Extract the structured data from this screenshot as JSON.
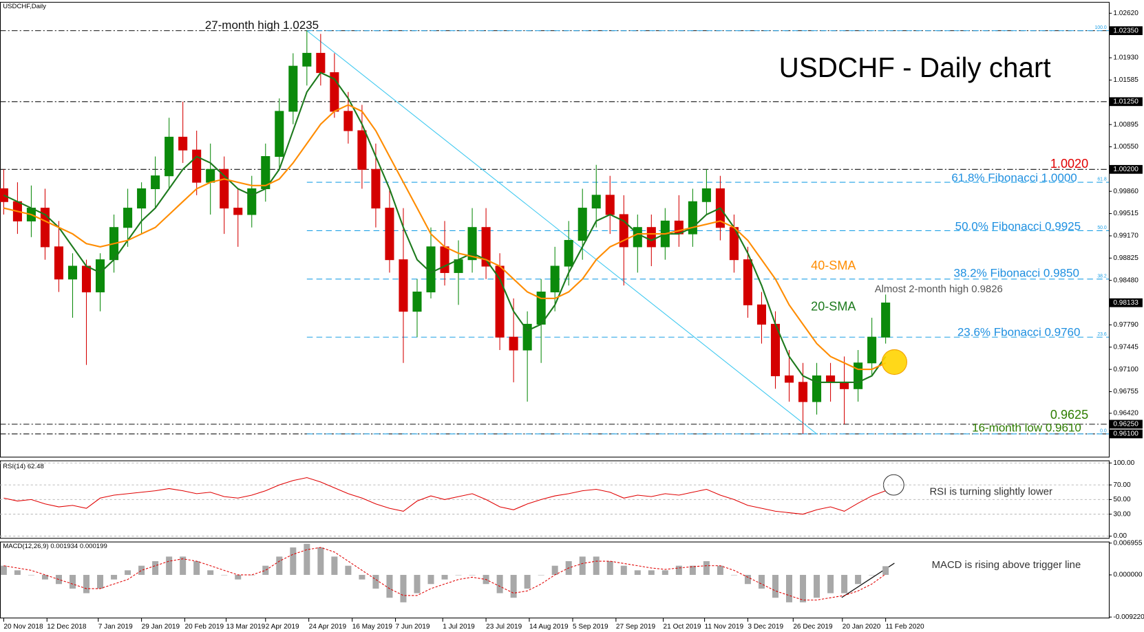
{
  "chart_data": [
    {
      "type": "candlestick",
      "header": "USDCHF,Daily",
      "title": "USDCHF - Daily chart",
      "x": [
        0,
        1,
        2,
        3,
        4,
        5,
        6,
        7,
        8,
        9,
        10,
        11,
        12,
        13,
        14,
        15,
        16,
        17,
        18,
        19,
        20,
        21,
        22,
        23,
        24,
        25,
        26,
        27,
        28,
        29,
        30,
        31,
        32,
        33,
        34,
        35,
        36,
        37,
        38,
        39,
        40,
        41,
        42,
        43,
        44,
        45,
        46,
        47,
        48,
        49,
        50,
        51,
        52,
        53,
        54,
        55,
        56,
        57,
        58,
        59,
        60,
        61,
        62,
        63,
        64
      ],
      "open": [
        0.999,
        0.997,
        0.994,
        0.996,
        0.99,
        0.985,
        0.987,
        0.983,
        0.988,
        0.993,
        0.996,
        0.999,
        1.001,
        1.007,
        1.005,
        1.0,
        1.002,
        0.996,
        0.995,
        0.999,
        1.004,
        1.011,
        1.018,
        1.02,
        1.017,
        1.011,
        1.008,
        1.002,
        0.996,
        0.988,
        0.98,
        0.983,
        0.99,
        0.986,
        0.988,
        0.993,
        0.987,
        0.976,
        0.974,
        0.978,
        0.983,
        0.987,
        0.991,
        0.996,
        0.998,
        0.995,
        0.99,
        0.993,
        0.99,
        0.994,
        0.992,
        0.997,
        0.999,
        0.993,
        0.988,
        0.981,
        0.978,
        0.97,
        0.969,
        0.966,
        0.97,
        0.969,
        0.968,
        0.972,
        0.976
      ],
      "high": [
        1.002,
        1.0,
        0.9995,
        0.999,
        0.994,
        0.989,
        0.988,
        0.989,
        0.995,
        0.999,
        1.0,
        1.004,
        1.01,
        1.0125,
        1.008,
        1.006,
        1.004,
        0.999,
        1.001,
        1.006,
        1.013,
        1.02,
        1.0235,
        1.023,
        1.02,
        1.014,
        1.012,
        1.006,
        0.999,
        0.996,
        0.985,
        0.993,
        0.994,
        0.991,
        0.996,
        0.996,
        0.989,
        0.982,
        0.98,
        0.985,
        0.99,
        0.994,
        0.999,
        1.0027,
        1.001,
        0.998,
        0.995,
        0.995,
        0.996,
        0.998,
        0.999,
        1.002,
        1.001,
        0.995,
        0.99,
        0.983,
        0.98,
        0.974,
        0.972,
        0.972,
        0.972,
        0.973,
        0.974,
        0.979,
        0.9826
      ],
      "low": [
        0.995,
        0.992,
        0.9915,
        0.988,
        0.983,
        0.979,
        0.9717,
        0.98,
        0.986,
        0.99,
        0.992,
        0.996,
        0.999,
        1.003,
        0.998,
        0.995,
        0.992,
        0.99,
        0.993,
        0.997,
        1.002,
        1.009,
        1.015,
        1.015,
        1.01,
        1.006,
        0.999,
        0.993,
        0.986,
        0.972,
        0.976,
        0.982,
        0.984,
        0.981,
        0.986,
        0.985,
        0.974,
        0.969,
        0.966,
        0.972,
        0.98,
        0.984,
        0.988,
        0.993,
        0.992,
        0.984,
        0.986,
        0.987,
        0.988,
        0.99,
        0.99,
        0.995,
        0.991,
        0.986,
        0.979,
        0.975,
        0.968,
        0.966,
        0.961,
        0.964,
        0.966,
        0.9625,
        0.966,
        0.97,
        0.975
      ],
      "close": [
        0.997,
        0.994,
        0.996,
        0.99,
        0.985,
        0.987,
        0.983,
        0.988,
        0.993,
        0.996,
        0.999,
        1.001,
        1.007,
        1.005,
        1.0,
        1.002,
        0.996,
        0.995,
        0.999,
        1.004,
        1.011,
        1.018,
        1.02,
        1.017,
        1.011,
        1.008,
        1.002,
        0.996,
        0.988,
        0.98,
        0.983,
        0.99,
        0.986,
        0.988,
        0.993,
        0.987,
        0.976,
        0.974,
        0.978,
        0.983,
        0.987,
        0.991,
        0.996,
        0.998,
        0.995,
        0.99,
        0.993,
        0.99,
        0.994,
        0.992,
        0.997,
        0.999,
        0.993,
        0.988,
        0.981,
        0.978,
        0.97,
        0.969,
        0.966,
        0.97,
        0.969,
        0.968,
        0.972,
        0.976,
        0.9813
      ],
      "up_color": "#0b8a0b",
      "down_color": "#d40000",
      "series": [
        {
          "name": "20-SMA",
          "color": "#1d7a1d",
          "values": [
            0.998,
            0.997,
            0.996,
            0.995,
            0.993,
            0.99,
            0.987,
            0.986,
            0.988,
            0.991,
            0.994,
            0.996,
            0.999,
            1.002,
            1.004,
            1.003,
            1.001,
            0.999,
            0.998,
            0.999,
            1.002,
            1.008,
            1.014,
            1.017,
            1.016,
            1.013,
            1.009,
            1.004,
            0.999,
            0.993,
            0.988,
            0.986,
            0.987,
            0.988,
            0.989,
            0.988,
            0.985,
            0.98,
            0.977,
            0.978,
            0.981,
            0.986,
            0.99,
            0.994,
            0.995,
            0.994,
            0.992,
            0.991,
            0.992,
            0.992,
            0.993,
            0.995,
            0.996,
            0.993,
            0.989,
            0.984,
            0.978,
            0.973,
            0.97,
            0.969,
            0.969,
            0.969,
            0.969,
            0.97,
            0.973
          ]
        },
        {
          "name": "40-SMA",
          "color": "#ff8c00",
          "values": [
            0.996,
            0.9955,
            0.995,
            0.994,
            0.993,
            0.992,
            0.9905,
            0.99,
            0.9905,
            0.991,
            0.992,
            0.993,
            0.995,
            0.997,
            0.999,
            1.0,
            1.0005,
            1.0,
            0.9995,
            0.9995,
            1.0005,
            1.003,
            1.006,
            1.009,
            1.011,
            1.012,
            1.011,
            1.008,
            1.004,
            1.0,
            0.996,
            0.992,
            0.99,
            0.989,
            0.9885,
            0.988,
            0.987,
            0.985,
            0.983,
            0.982,
            0.982,
            0.983,
            0.985,
            0.988,
            0.99,
            0.991,
            0.992,
            0.992,
            0.992,
            0.9925,
            0.993,
            0.9935,
            0.994,
            0.993,
            0.991,
            0.988,
            0.985,
            0.981,
            0.978,
            0.975,
            0.973,
            0.972,
            0.971,
            0.971,
            0.972
          ]
        }
      ],
      "xlim": [
        -0.27,
        80.2
      ],
      "ylim": [
        0.9574,
        1.0279
      ],
      "xticks": [
        {
          "value": 0,
          "label": "20 Nov 2018"
        },
        {
          "value": 3.14,
          "label": "12 Dec 2018"
        },
        {
          "value": 6.86,
          "label": "7 Jan 2019"
        },
        {
          "value": 10,
          "label": "29 Jan 2019"
        },
        {
          "value": 13.14,
          "label": "20 Feb 2019"
        },
        {
          "value": 16.14,
          "label": "13 Mar 2019"
        },
        {
          "value": 19,
          "label": "2 Apr 2019"
        },
        {
          "value": 22.14,
          "label": "24 Apr 2019"
        },
        {
          "value": 25.29,
          "label": "16 May 2019"
        },
        {
          "value": 28.43,
          "label": "7 Jun 2019"
        },
        {
          "value": 31.86,
          "label": "1 Jul 2019"
        },
        {
          "value": 35,
          "label": "23 Jul 2019"
        },
        {
          "value": 38.14,
          "label": "14 Aug 2019"
        },
        {
          "value": 41.29,
          "label": "5 Sep 2019"
        },
        {
          "value": 44.43,
          "label": "27 Sep 2019"
        },
        {
          "value": 47.86,
          "label": "21 Oct 2019"
        },
        {
          "value": 50.86,
          "label": "11 Nov 2019"
        },
        {
          "value": 54,
          "label": "3 Dec 2019"
        },
        {
          "value": 57.29,
          "label": "26 Dec 2019"
        },
        {
          "value": 60.86,
          "label": "20 Jan 2020"
        },
        {
          "value": 64,
          "label": "11 Feb 2020"
        }
      ],
      "yticks": [
        {
          "value": 1.0262,
          "label": "1.02620"
        },
        {
          "value": 1.0193,
          "label": "1.01930"
        },
        1.01585,
        1.00895,
        {
          "value": 1.0055,
          "label": "1.00550"
        },
        {
          "value": 0.9986,
          "label": "0.99860"
        },
        0.99515,
        {
          "value": 0.9917,
          "label": "0.99170"
        },
        0.98825,
        {
          "value": 0.9848,
          "label": "0.98480"
        },
        {
          "value": 0.9779,
          "label": "0.97790"
        },
        0.97445,
        {
          "value": 0.971,
          "label": "0.97100"
        },
        0.96755,
        {
          "value": 0.9642,
          "label": "0.96420"
        }
      ],
      "marker_ticks": [
        {
          "value": 1.0235,
          "label": "1.02350"
        },
        {
          "value": 1.0125,
          "label": "1.01250"
        },
        {
          "value": 1.002,
          "label": "1.00200"
        },
        0.98133,
        {
          "value": 0.9625,
          "label": "0.96250"
        },
        {
          "value": 0.961,
          "label": "0.96100"
        }
      ],
      "hlines": [
        1.0235,
        1.0125,
        1.002,
        0.9625,
        0.961
      ],
      "fib_color": "#1ea0e6",
      "fib_levels": [
        {
          "value": 1.0235,
          "label": "100.0"
        },
        {
          "value": 1.0,
          "label": "61.8"
        },
        {
          "value": 0.9925,
          "label": "50.0"
        },
        {
          "value": 0.985,
          "label": "38.2"
        },
        {
          "value": 0.976,
          "label": "23.6"
        },
        {
          "value": 0.961,
          "label": "0.0"
        }
      ],
      "trendline": {
        "x": [
          22,
          59
        ],
        "y": [
          1.0235,
          0.961
        ],
        "color": "#3cc8f0"
      },
      "annotations": [
        {
          "text": "27-month high 1.0235",
          "color": "#111111"
        },
        {
          "text": "1.0020",
          "color": "#e00000"
        },
        {
          "text": "61.8% Fibonacci 1.0000",
          "color": "#1e8fe0"
        },
        {
          "text": "50.0% Fibonacci 0.9925",
          "color": "#1e8fe0"
        },
        {
          "text": "38.2% Fibonacci 0.9850",
          "color": "#1e8fe0"
        },
        {
          "text": "Almost 2-month high 0.9826",
          "color": "#555555"
        },
        {
          "text": "23.6% Fbonacci 0.9760",
          "color": "#1e8fe0"
        },
        {
          "text": "0.9625",
          "color": "#2e7d00"
        },
        {
          "text": "16-month low 0.9610",
          "color": "#2e7d00"
        }
      ]
    },
    {
      "type": "line",
      "title": "RSI(14) 62.48",
      "note": "RSI is turning slightly lower",
      "x": [
        0,
        1,
        2,
        3,
        4,
        5,
        6,
        7,
        8,
        9,
        10,
        11,
        12,
        13,
        14,
        15,
        16,
        17,
        18,
        19,
        20,
        21,
        22,
        23,
        24,
        25,
        26,
        27,
        28,
        29,
        30,
        31,
        32,
        33,
        34,
        35,
        36,
        37,
        38,
        39,
        40,
        41,
        42,
        43,
        44,
        45,
        46,
        47,
        48,
        49,
        50,
        51,
        52,
        53,
        54,
        55,
        56,
        57,
        58,
        59,
        60,
        61,
        62,
        63,
        64
      ],
      "series": [
        {
          "color": "#e00000",
          "values": [
            52,
            48,
            50,
            44,
            40,
            42,
            38,
            52,
            56,
            58,
            60,
            62,
            65,
            62,
            58,
            60,
            54,
            52,
            56,
            62,
            70,
            76,
            80,
            74,
            66,
            58,
            52,
            44,
            38,
            34,
            48,
            55,
            50,
            54,
            58,
            50,
            40,
            36,
            44,
            50,
            55,
            58,
            62,
            64,
            60,
            52,
            56,
            54,
            58,
            56,
            60,
            64,
            56,
            50,
            42,
            38,
            34,
            32,
            30,
            36,
            40,
            34,
            45,
            55,
            62
          ]
        }
      ],
      "ylim": [
        -3,
        103
      ],
      "yticks": [
        {
          "value": 100,
          "label": "100.00"
        },
        {
          "value": 70,
          "label": "70.00"
        },
        {
          "value": 50,
          "label": "50.00"
        },
        {
          "value": 30,
          "label": "30.00"
        },
        {
          "value": 0,
          "label": "0.00"
        }
      ]
    },
    {
      "type": "macd",
      "title": "MACD(12,26,9) 0.001934 0.000199",
      "note": "MACD is rising above trigger line",
      "x": [
        0,
        1,
        2,
        3,
        4,
        5,
        6,
        7,
        8,
        9,
        10,
        11,
        12,
        13,
        14,
        15,
        16,
        17,
        18,
        19,
        20,
        21,
        22,
        23,
        24,
        25,
        26,
        27,
        28,
        29,
        30,
        31,
        32,
        33,
        34,
        35,
        36,
        37,
        38,
        39,
        40,
        41,
        42,
        43,
        44,
        45,
        46,
        47,
        48,
        49,
        50,
        51,
        52,
        53,
        54,
        55,
        56,
        57,
        58,
        59,
        60,
        61,
        62,
        63,
        64
      ],
      "histogram": {
        "color": "#a8a8a8",
        "values": [
          0.002,
          0.001,
          0.0,
          -0.001,
          -0.002,
          -0.003,
          -0.004,
          -0.003,
          -0.001,
          0.001,
          0.002,
          0.003,
          0.004,
          0.004,
          0.003,
          0.001,
          0.0,
          -0.001,
          0.0,
          0.002,
          0.004,
          0.006,
          0.0068,
          0.006,
          0.004,
          0.002,
          -0.001,
          -0.003,
          -0.005,
          -0.006,
          -0.004,
          -0.002,
          -0.001,
          0.0,
          0.0,
          -0.002,
          -0.004,
          -0.005,
          -0.003,
          0.0,
          0.002,
          0.003,
          0.004,
          0.004,
          0.003,
          0.002,
          0.001,
          0.001,
          0.001,
          0.002,
          0.002,
          0.003,
          0.002,
          0.0,
          -0.002,
          -0.003,
          -0.005,
          -0.006,
          -0.006,
          -0.005,
          -0.004,
          -0.004,
          -0.002,
          0.0,
          0.0019
        ]
      },
      "signal": {
        "color": "#e00000",
        "values": [
          0.002,
          0.0015,
          0.001,
          0.0,
          -0.001,
          -0.002,
          -0.003,
          -0.003,
          -0.002,
          -0.001,
          0.001,
          0.002,
          0.003,
          0.0035,
          0.003,
          0.002,
          0.001,
          0.0,
          0.0,
          0.001,
          0.003,
          0.0045,
          0.0055,
          0.006,
          0.005,
          0.003,
          0.001,
          -0.001,
          -0.003,
          -0.0045,
          -0.0045,
          -0.003,
          -0.002,
          -0.001,
          -0.0005,
          -0.001,
          -0.0025,
          -0.004,
          -0.0035,
          -0.002,
          0.0,
          0.0015,
          0.0025,
          0.003,
          0.003,
          0.0025,
          0.002,
          0.0015,
          0.0012,
          0.0015,
          0.0018,
          0.002,
          0.002,
          0.001,
          -0.0005,
          -0.002,
          -0.0035,
          -0.0045,
          -0.0055,
          -0.0055,
          -0.005,
          -0.0045,
          -0.0035,
          -0.002,
          0.0002
        ]
      },
      "ylim": [
        -0.00943,
        0.0072
      ],
      "yticks": [
        0.006955,
        {
          "value": 0,
          "label": "0.000000"
        },
        {
          "value": -0.00922,
          "label": "-0.009220"
        }
      ]
    }
  ]
}
